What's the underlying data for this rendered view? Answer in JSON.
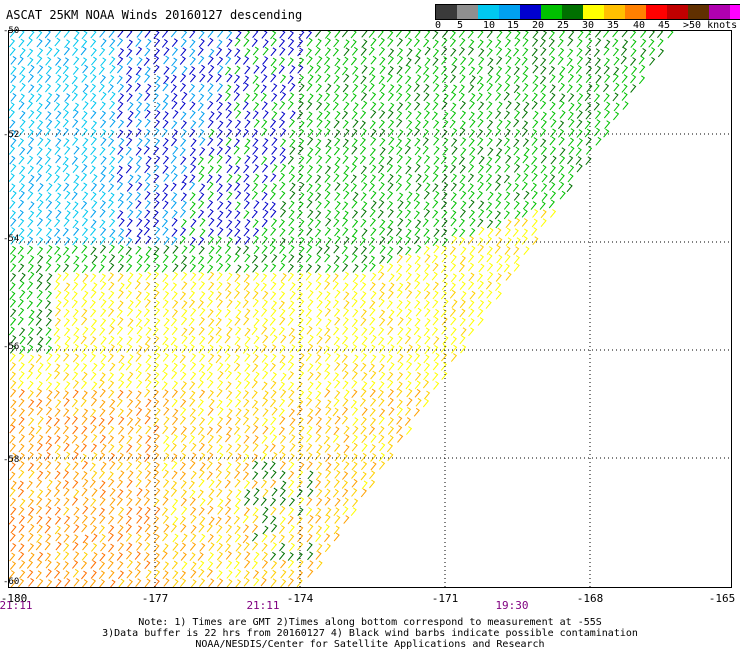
{
  "title": "ASCAT 25KM NOAA Winds 20160127 descending",
  "legend": {
    "colors": [
      "#3a3a3a",
      "#8f8f8f",
      "#00c8f0",
      "#00a0f0",
      "#0000d0",
      "#00c000",
      "#007000",
      "#ffff00",
      "#ffc000",
      "#ff8000",
      "#ff0000",
      "#c00000",
      "#603000",
      "#b000b0",
      "#ff00ff",
      "#6000a0"
    ],
    "labels": [
      "0",
      "5",
      "10",
      "15",
      "20",
      "25",
      "30",
      "35",
      "40",
      "45",
      ">50 knots"
    ]
  },
  "latitudes": [
    "-50",
    "-52",
    "-54",
    "-56",
    "-58",
    "-60"
  ],
  "longitudes": [
    "-180",
    "-177",
    "-174",
    "-171",
    "-168",
    "-165"
  ],
  "time_labels": [
    "21:11",
    "21:11",
    "19:30"
  ],
  "note_lines": [
    "Note: 1) Times are GMT 2)Times along bottom correspond to measurement at -55S",
    "3)Data buffer is 22 hrs from 20160127 4) Black wind barbs indicate possible contamination",
    "NOAA/NESDIS/Center for Satellite Applications and Research"
  ]
}
